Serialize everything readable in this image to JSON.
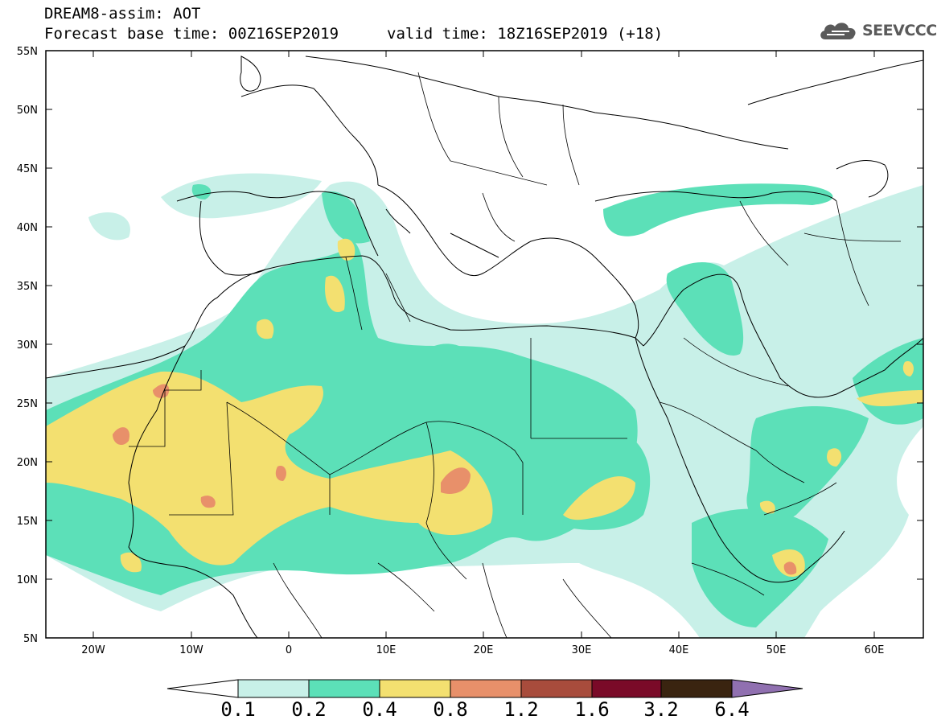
{
  "title": {
    "line1": "DREAM8-assim: AOT",
    "base": "Forecast base time: 00Z16SEP2019",
    "valid": "valid time: 18Z16SEP2019 (+18)"
  },
  "logo": {
    "text": "SEEVCCC",
    "icon": "cloud-icon"
  },
  "map": {
    "lat_labels": [
      "55N",
      "50N",
      "45N",
      "40N",
      "35N",
      "30N",
      "25N",
      "20N",
      "15N",
      "10N",
      "5N"
    ],
    "lon_labels": [
      "20W",
      "10W",
      "0",
      "10E",
      "20E",
      "30E",
      "40E",
      "50E",
      "60E"
    ],
    "colors": {
      "c1": "#c8f0e8",
      "c2": "#5ce0b8",
      "c3": "#f3e070",
      "c4": "#e8906a",
      "c5": "#a84c3c",
      "c6": "#7a0a28",
      "c7": "#3a2410",
      "c8": "#9070b0"
    }
  },
  "colorbar": {
    "ticks": [
      "0.1",
      "0.2",
      "0.4",
      "0.8",
      "1.2",
      "1.6",
      "3.2",
      "6.4"
    ]
  }
}
